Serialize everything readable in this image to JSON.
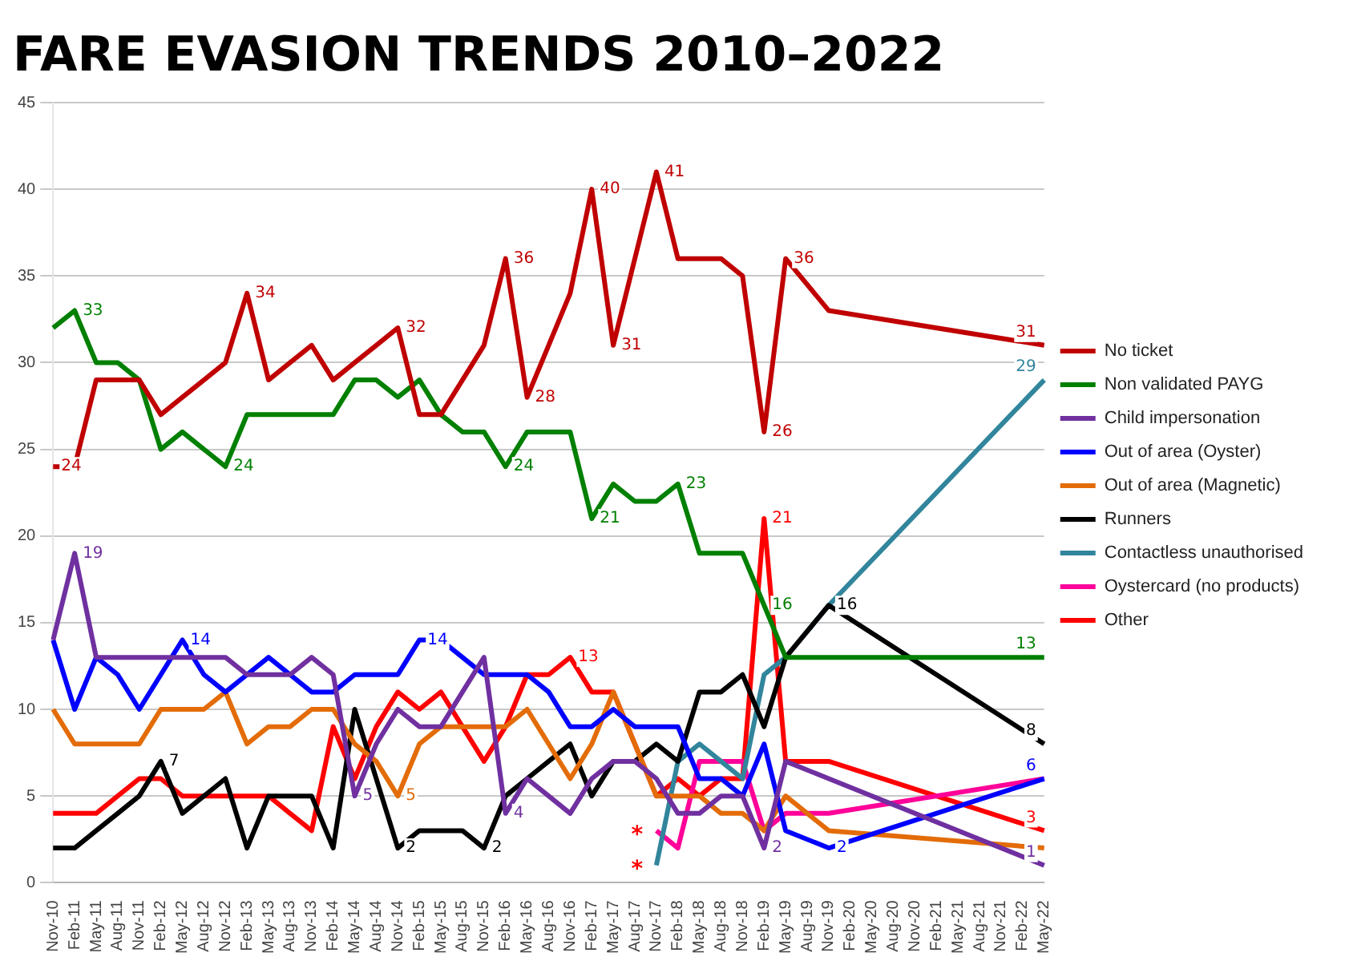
{
  "chart_data": {
    "type": "line",
    "title": "FARE EVASION TRENDS 2010–2022",
    "categories": [
      "Nov-10",
      "Feb-11",
      "May-11",
      "Aug-11",
      "Nov-11",
      "Feb-12",
      "May-12",
      "Aug-12",
      "Nov-12",
      "Feb-13",
      "May-13",
      "Aug-13",
      "Nov-13",
      "Feb-14",
      "May-14",
      "Aug-14",
      "Nov-14",
      "Feb-15",
      "May-15",
      "Aug-15",
      "Nov-15",
      "Feb-16",
      "May-16",
      "Aug-16",
      "Nov-16",
      "Feb-17",
      "May-17",
      "Aug-17",
      "Nov-17",
      "Feb-18",
      "May-18",
      "Aug-18",
      "Nov-18",
      "Feb-19",
      "May-19",
      "Aug-19",
      "Nov-19",
      "Feb-20",
      "May-20",
      "Aug-20",
      "Nov-20",
      "Feb-21",
      "May-21",
      "Aug-21",
      "Nov-21",
      "Feb-22",
      "May-22"
    ],
    "series": [
      {
        "name": "No ticket",
        "color": "#c00000",
        "values": [
          24,
          24,
          29,
          29,
          29,
          27,
          28,
          29,
          30,
          34,
          29,
          30,
          31,
          29,
          30,
          31,
          32,
          27,
          27,
          29,
          31,
          36,
          28,
          31,
          34,
          40,
          31,
          36,
          41,
          36,
          36,
          36,
          35,
          26,
          36,
          null,
          33,
          null,
          null,
          null,
          null,
          null,
          null,
          null,
          null,
          null,
          31
        ],
        "value_labels": [
          "24",
          null,
          null,
          null,
          null,
          null,
          null,
          null,
          null,
          "34",
          null,
          null,
          null,
          null,
          null,
          null,
          "32",
          null,
          null,
          null,
          null,
          "36",
          "28",
          null,
          null,
          "40",
          "31",
          null,
          "41",
          null,
          null,
          null,
          null,
          "26",
          "36",
          null,
          null,
          null,
          null,
          null,
          null,
          null,
          null,
          null,
          null,
          null,
          "31"
        ]
      },
      {
        "name": "Non validated PAYG",
        "color": "#008000",
        "values": [
          32,
          33,
          30,
          30,
          29,
          25,
          26,
          25,
          24,
          27,
          27,
          27,
          27,
          27,
          29,
          29,
          28,
          29,
          27,
          26,
          26,
          24,
          26,
          26,
          26,
          21,
          23,
          22,
          22,
          23,
          19,
          19,
          19,
          16,
          13,
          null,
          13,
          null,
          null,
          null,
          null,
          null,
          null,
          null,
          null,
          null,
          13
        ],
        "value_labels": [
          null,
          "33",
          null,
          null,
          null,
          null,
          null,
          null,
          "24",
          null,
          null,
          null,
          null,
          null,
          null,
          null,
          null,
          null,
          null,
          null,
          null,
          "24",
          null,
          null,
          null,
          "21",
          null,
          null,
          null,
          "23",
          null,
          null,
          null,
          "16",
          null,
          null,
          null,
          null,
          null,
          null,
          null,
          null,
          null,
          null,
          null,
          null,
          "13"
        ]
      },
      {
        "name": "Child impersonation",
        "color": "#7030a0",
        "values": [
          14,
          19,
          13,
          13,
          13,
          13,
          13,
          13,
          13,
          12,
          12,
          12,
          13,
          12,
          5,
          8,
          10,
          9,
          9,
          11,
          13,
          4,
          6,
          5,
          4,
          6,
          7,
          7,
          6,
          4,
          4,
          5,
          5,
          2,
          7,
          null,
          6,
          null,
          null,
          null,
          null,
          null,
          null,
          null,
          null,
          null,
          1
        ],
        "value_labels": [
          null,
          "19",
          null,
          null,
          null,
          null,
          null,
          null,
          null,
          null,
          null,
          null,
          null,
          null,
          "5",
          null,
          null,
          null,
          null,
          null,
          null,
          "4",
          null,
          null,
          null,
          null,
          null,
          null,
          null,
          null,
          null,
          null,
          null,
          "2",
          null,
          null,
          null,
          null,
          null,
          null,
          null,
          null,
          null,
          null,
          null,
          null,
          "1"
        ]
      },
      {
        "name": "Out of area (Oyster)",
        "color": "#0000ff",
        "values": [
          14,
          10,
          13,
          12,
          10,
          12,
          14,
          12,
          11,
          12,
          13,
          12,
          11,
          11,
          12,
          12,
          12,
          14,
          14,
          13,
          12,
          12,
          12,
          11,
          9,
          9,
          10,
          9,
          9,
          9,
          6,
          6,
          5,
          8,
          3,
          null,
          2,
          null,
          null,
          null,
          null,
          null,
          null,
          null,
          null,
          null,
          6
        ],
        "value_labels": [
          null,
          null,
          null,
          null,
          null,
          null,
          "14",
          null,
          null,
          null,
          null,
          null,
          null,
          null,
          null,
          null,
          null,
          "14",
          null,
          null,
          null,
          null,
          null,
          null,
          null,
          null,
          null,
          null,
          null,
          null,
          null,
          null,
          null,
          null,
          null,
          null,
          "2",
          null,
          null,
          null,
          null,
          null,
          null,
          null,
          null,
          null,
          "6"
        ]
      },
      {
        "name": "Out of area (Magnetic)",
        "color": "#e36c09",
        "values": [
          10,
          8,
          8,
          8,
          8,
          10,
          10,
          10,
          11,
          8,
          9,
          9,
          10,
          10,
          8,
          7,
          5,
          8,
          9,
          9,
          9,
          9,
          10,
          8,
          6,
          8,
          11,
          8,
          5,
          5,
          5,
          4,
          4,
          3,
          5,
          null,
          3,
          null,
          null,
          null,
          null,
          null,
          null,
          null,
          null,
          null,
          2
        ],
        "value_labels": [
          null,
          null,
          null,
          null,
          null,
          null,
          null,
          null,
          null,
          null,
          null,
          null,
          null,
          null,
          null,
          null,
          "5",
          null,
          null,
          null,
          null,
          null,
          null,
          null,
          null,
          null,
          null,
          null,
          null,
          null,
          null,
          null,
          null,
          null,
          null,
          null,
          null,
          null,
          null,
          null,
          null,
          null,
          null,
          null,
          null,
          null,
          null
        ]
      },
      {
        "name": "Runners",
        "color": "#000000",
        "values": [
          2,
          2,
          3,
          4,
          5,
          7,
          4,
          5,
          6,
          2,
          5,
          5,
          5,
          2,
          10,
          6,
          2,
          3,
          3,
          3,
          2,
          5,
          6,
          7,
          8,
          5,
          7,
          7,
          8,
          7,
          11,
          11,
          12,
          9,
          13,
          null,
          16,
          null,
          null,
          null,
          null,
          null,
          null,
          null,
          null,
          null,
          8
        ],
        "value_labels": [
          null,
          null,
          null,
          null,
          null,
          "7",
          null,
          null,
          null,
          null,
          null,
          null,
          null,
          null,
          null,
          null,
          "2",
          null,
          null,
          null,
          "2",
          null,
          null,
          null,
          null,
          null,
          null,
          null,
          null,
          null,
          null,
          null,
          null,
          null,
          null,
          null,
          "16",
          null,
          null,
          null,
          null,
          null,
          null,
          null,
          null,
          null,
          "8"
        ]
      },
      {
        "name": "Contactless unauthorised",
        "color": "#31859c",
        "values": [
          null,
          null,
          null,
          null,
          null,
          null,
          null,
          null,
          null,
          null,
          null,
          null,
          null,
          null,
          null,
          null,
          null,
          null,
          null,
          null,
          null,
          null,
          null,
          null,
          null,
          null,
          null,
          null,
          1,
          7,
          8,
          7,
          6,
          12,
          13,
          null,
          16,
          null,
          null,
          null,
          null,
          null,
          null,
          null,
          null,
          null,
          29
        ],
        "value_labels": [
          null,
          null,
          null,
          null,
          null,
          null,
          null,
          null,
          null,
          null,
          null,
          null,
          null,
          null,
          null,
          null,
          null,
          null,
          null,
          null,
          null,
          null,
          null,
          null,
          null,
          null,
          null,
          null,
          null,
          null,
          null,
          null,
          null,
          null,
          null,
          null,
          null,
          null,
          null,
          null,
          null,
          null,
          null,
          null,
          null,
          null,
          "29"
        ]
      },
      {
        "name": "Oystercard (no products)",
        "color": "#ff0099",
        "values": [
          null,
          null,
          null,
          null,
          null,
          null,
          null,
          null,
          null,
          null,
          null,
          null,
          null,
          null,
          null,
          null,
          null,
          null,
          null,
          null,
          null,
          null,
          null,
          null,
          null,
          null,
          null,
          null,
          3,
          2,
          7,
          7,
          7,
          3,
          4,
          null,
          4,
          null,
          null,
          null,
          null,
          null,
          null,
          null,
          null,
          null,
          6
        ]
      },
      {
        "name": "Other",
        "color": "#ff0000",
        "values": [
          4,
          4,
          4,
          5,
          6,
          6,
          5,
          5,
          5,
          5,
          5,
          4,
          3,
          9,
          6,
          9,
          11,
          10,
          11,
          9,
          7,
          9,
          12,
          12,
          13,
          11,
          11,
          8,
          5,
          6,
          5,
          6,
          6,
          21,
          7,
          null,
          7,
          null,
          null,
          null,
          null,
          null,
          null,
          null,
          null,
          null,
          3
        ],
        "value_labels": [
          null,
          null,
          null,
          null,
          null,
          null,
          null,
          null,
          null,
          null,
          null,
          null,
          null,
          null,
          null,
          null,
          null,
          null,
          null,
          null,
          null,
          null,
          null,
          null,
          "13",
          null,
          null,
          null,
          null,
          null,
          null,
          null,
          null,
          "21",
          null,
          null,
          null,
          null,
          null,
          null,
          null,
          null,
          null,
          null,
          null,
          null,
          "3"
        ]
      }
    ],
    "ylim": [
      0,
      45
    ],
    "yticks": [
      0,
      5,
      10,
      15,
      20,
      25,
      30,
      35,
      40,
      45
    ],
    "grid": "y",
    "legend": "right",
    "marker": "none",
    "annotations": [
      {
        "text": "*",
        "x": "Nov-17",
        "y": 3
      },
      {
        "text": "*",
        "x": "Nov-17",
        "y": 1
      }
    ]
  }
}
